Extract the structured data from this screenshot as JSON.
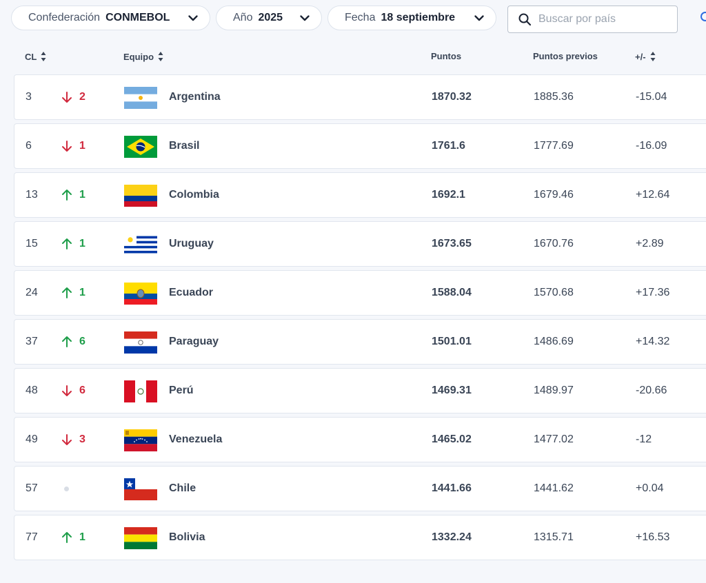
{
  "filters": {
    "confederation": {
      "label": "Confederación",
      "value": "CONMEBOL"
    },
    "year": {
      "label": "Año",
      "value": "2025"
    },
    "date": {
      "label": "Fecha",
      "value": "18 septiembre"
    },
    "search_placeholder": "Buscar por país"
  },
  "columns": {
    "rank": "CL",
    "team": "Equipo",
    "points": "Puntos",
    "previous": "Puntos previos",
    "diff": "+/-"
  },
  "colors": {
    "up": "#1e9e4a",
    "down": "#d1293d"
  },
  "rows": [
    {
      "rank": "3",
      "direction": "down",
      "move": "2",
      "team": "Argentina",
      "flag": "argentina-flag-icon",
      "points": "1870.32",
      "previous": "1885.36",
      "diff": "-15.04"
    },
    {
      "rank": "6",
      "direction": "down",
      "move": "1",
      "team": "Brasil",
      "flag": "brazil-flag-icon",
      "points": "1761.6",
      "previous": "1777.69",
      "diff": "-16.09"
    },
    {
      "rank": "13",
      "direction": "up",
      "move": "1",
      "team": "Colombia",
      "flag": "colombia-flag-icon",
      "points": "1692.1",
      "previous": "1679.46",
      "diff": "+12.64"
    },
    {
      "rank": "15",
      "direction": "up",
      "move": "1",
      "team": "Uruguay",
      "flag": "uruguay-flag-icon",
      "points": "1673.65",
      "previous": "1670.76",
      "diff": "+2.89"
    },
    {
      "rank": "24",
      "direction": "up",
      "move": "1",
      "team": "Ecuador",
      "flag": "ecuador-flag-icon",
      "points": "1588.04",
      "previous": "1570.68",
      "diff": "+17.36"
    },
    {
      "rank": "37",
      "direction": "up",
      "move": "6",
      "team": "Paraguay",
      "flag": "paraguay-flag-icon",
      "points": "1501.01",
      "previous": "1486.69",
      "diff": "+14.32"
    },
    {
      "rank": "48",
      "direction": "down",
      "move": "6",
      "team": "Perú",
      "flag": "peru-flag-icon",
      "points": "1469.31",
      "previous": "1489.97",
      "diff": "-20.66"
    },
    {
      "rank": "49",
      "direction": "down",
      "move": "3",
      "team": "Venezuela",
      "flag": "venezuela-flag-icon",
      "points": "1465.02",
      "previous": "1477.02",
      "diff": "-12"
    },
    {
      "rank": "57",
      "direction": "same",
      "move": "",
      "team": "Chile",
      "flag": "chile-flag-icon",
      "points": "1441.66",
      "previous": "1441.62",
      "diff": "+0.04"
    },
    {
      "rank": "77",
      "direction": "up",
      "move": "1",
      "team": "Bolivia",
      "flag": "bolivia-flag-icon",
      "points": "1332.24",
      "previous": "1315.71",
      "diff": "+16.53"
    }
  ]
}
